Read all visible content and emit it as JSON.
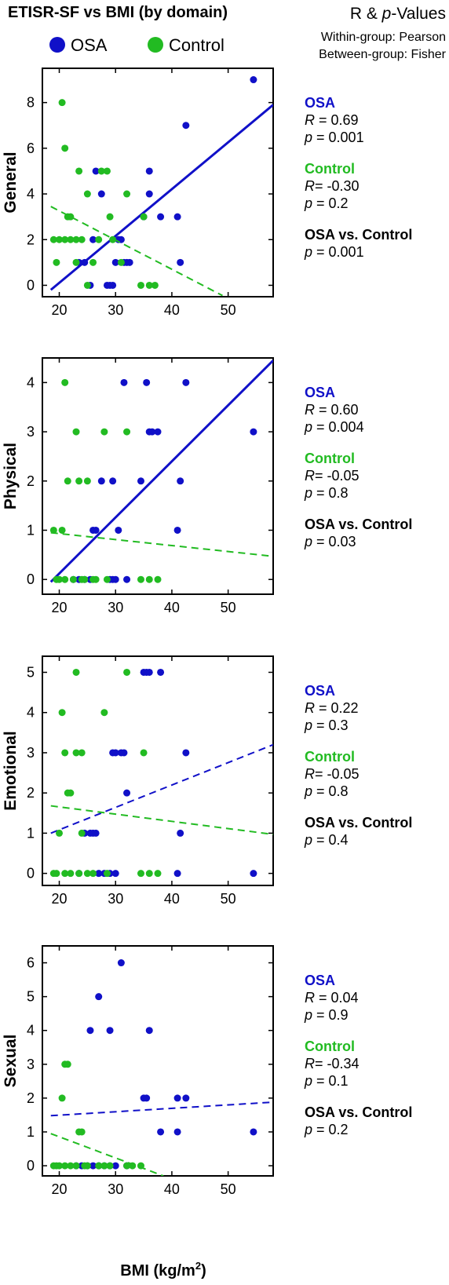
{
  "title": "ETISR-SF vs BMI (by domain)",
  "stats_header": {
    "title_prefix": "R & ",
    "title_p": "p",
    "title_suffix": "-Values",
    "within": "Within-group: Pearson",
    "between": "Between-group: Fisher"
  },
  "legend": [
    {
      "label": "OSA",
      "color": "#1010c8"
    },
    {
      "label": "Control",
      "color": "#22bb22"
    }
  ],
  "colors": {
    "osa": "#1010c8",
    "control": "#22bb22"
  },
  "xlabel": {
    "pre": "BMI (kg/m",
    "sup": "2",
    "post": ")"
  },
  "stat_text": {
    "r": "R",
    "p": "p",
    "between_title": "OSA vs. Control"
  },
  "chart_data": [
    {
      "type": "scatter",
      "ylabel": "General",
      "xlim": [
        17,
        58
      ],
      "ylim": [
        -0.5,
        9.5
      ],
      "xticks": [
        20,
        30,
        40,
        50
      ],
      "yticks": [
        0,
        2,
        4,
        6,
        8
      ],
      "series": [
        {
          "name": "OSA",
          "color": "#1010c8",
          "points": [
            [
              23.5,
              1
            ],
            [
              24.5,
              1
            ],
            [
              25.5,
              0
            ],
            [
              26,
              2
            ],
            [
              26.5,
              5
            ],
            [
              27.5,
              4
            ],
            [
              28.5,
              0
            ],
            [
              29,
              0
            ],
            [
              29.5,
              0
            ],
            [
              30,
              1
            ],
            [
              30.5,
              2
            ],
            [
              31,
              2
            ],
            [
              31.5,
              1
            ],
            [
              32,
              1
            ],
            [
              32.5,
              1
            ],
            [
              35,
              3
            ],
            [
              36,
              4
            ],
            [
              36,
              5
            ],
            [
              38,
              3
            ],
            [
              41,
              3
            ],
            [
              41.5,
              1
            ],
            [
              42.5,
              7
            ],
            [
              54.5,
              9
            ]
          ],
          "fit": {
            "x": [
              18.5,
              58
            ],
            "y": [
              -0.2,
              7.9
            ],
            "dashed": false
          }
        },
        {
          "name": "Control",
          "color": "#22bb22",
          "points": [
            [
              19,
              2
            ],
            [
              19.5,
              1
            ],
            [
              20,
              2
            ],
            [
              20.5,
              8
            ],
            [
              21,
              2
            ],
            [
              21,
              6
            ],
            [
              21.5,
              3
            ],
            [
              22,
              3
            ],
            [
              22,
              2
            ],
            [
              23,
              2
            ],
            [
              23,
              1
            ],
            [
              23.5,
              5
            ],
            [
              24,
              2
            ],
            [
              25,
              4
            ],
            [
              25,
              0
            ],
            [
              26,
              1
            ],
            [
              27,
              2
            ],
            [
              27.5,
              5
            ],
            [
              28.5,
              5
            ],
            [
              29,
              3
            ],
            [
              29.5,
              2
            ],
            [
              31,
              1
            ],
            [
              32,
              4
            ],
            [
              34.5,
              0
            ],
            [
              35,
              3
            ],
            [
              36,
              0
            ],
            [
              37,
              0
            ]
          ],
          "fit": {
            "x": [
              18.5,
              49
            ],
            "y": [
              3.45,
              -0.45
            ],
            "dashed": true
          }
        }
      ],
      "stats": {
        "osa": {
          "R": "0.69",
          "p": "0.001"
        },
        "control": {
          "R": "-0.30",
          "p": "0.2"
        },
        "between": {
          "p": "0.001"
        }
      }
    },
    {
      "type": "scatter",
      "ylabel": "Physical",
      "xlim": [
        17,
        58
      ],
      "ylim": [
        -0.3,
        4.5
      ],
      "xticks": [
        20,
        30,
        40,
        50
      ],
      "yticks": [
        0,
        1,
        2,
        3,
        4
      ],
      "series": [
        {
          "name": "OSA",
          "color": "#1010c8",
          "points": [
            [
              22.5,
              0
            ],
            [
              23.5,
              0
            ],
            [
              24.5,
              0
            ],
            [
              25.5,
              0
            ],
            [
              26,
              1
            ],
            [
              26.5,
              1
            ],
            [
              27.5,
              2
            ],
            [
              29,
              0
            ],
            [
              29.5,
              0
            ],
            [
              30,
              0
            ],
            [
              29.5,
              2
            ],
            [
              30.5,
              1
            ],
            [
              31.5,
              4
            ],
            [
              32,
              0
            ],
            [
              34.5,
              2
            ],
            [
              35.5,
              4
            ],
            [
              36,
              3
            ],
            [
              36.5,
              3
            ],
            [
              37.5,
              3
            ],
            [
              41,
              1
            ],
            [
              41.5,
              2
            ],
            [
              42.5,
              4
            ],
            [
              54.5,
              3
            ]
          ],
          "fit": {
            "x": [
              18.5,
              58
            ],
            "y": [
              -0.05,
              4.45
            ],
            "dashed": false
          }
        },
        {
          "name": "Control",
          "color": "#22bb22",
          "points": [
            [
              19,
              1
            ],
            [
              19.5,
              0
            ],
            [
              20,
              0
            ],
            [
              20.5,
              1
            ],
            [
              21,
              0
            ],
            [
              21,
              4
            ],
            [
              21.5,
              2
            ],
            [
              22.5,
              0
            ],
            [
              23,
              3
            ],
            [
              23.5,
              2
            ],
            [
              24,
              0
            ],
            [
              24.5,
              0
            ],
            [
              25,
              2
            ],
            [
              26,
              0
            ],
            [
              26.5,
              0
            ],
            [
              28,
              3
            ],
            [
              28.5,
              0
            ],
            [
              32,
              3
            ],
            [
              34.5,
              0
            ],
            [
              36,
              0
            ],
            [
              37.5,
              0
            ]
          ],
          "fit": {
            "x": [
              18.5,
              58
            ],
            "y": [
              0.95,
              0.47
            ],
            "dashed": true
          }
        }
      ],
      "stats": {
        "osa": {
          "R": "0.60",
          "p": "0.004"
        },
        "control": {
          "R": "-0.05",
          "p": "0.8"
        },
        "between": {
          "p": "0.03"
        }
      }
    },
    {
      "type": "scatter",
      "ylabel": "Emotional",
      "xlim": [
        17,
        58
      ],
      "ylim": [
        -0.3,
        5.4
      ],
      "xticks": [
        20,
        30,
        40,
        50
      ],
      "yticks": [
        0,
        1,
        2,
        3,
        4,
        5
      ],
      "series": [
        {
          "name": "OSA",
          "color": "#1010c8",
          "points": [
            [
              23.5,
              0
            ],
            [
              24.5,
              1
            ],
            [
              25.5,
              1
            ],
            [
              26,
              1
            ],
            [
              26.5,
              1
            ],
            [
              27,
              0
            ],
            [
              28,
              0
            ],
            [
              29,
              0
            ],
            [
              29.5,
              3
            ],
            [
              30,
              3
            ],
            [
              30,
              0
            ],
            [
              31,
              3
            ],
            [
              31.5,
              3
            ],
            [
              32,
              2
            ],
            [
              35,
              5
            ],
            [
              35.5,
              5
            ],
            [
              36,
              5
            ],
            [
              38,
              5
            ],
            [
              41,
              0
            ],
            [
              41.5,
              1
            ],
            [
              42.5,
              3
            ],
            [
              54.5,
              0
            ]
          ],
          "fit": {
            "x": [
              18.5,
              58
            ],
            "y": [
              1.0,
              3.2
            ],
            "dashed": true
          }
        },
        {
          "name": "Control",
          "color": "#22bb22",
          "points": [
            [
              19,
              0
            ],
            [
              19.5,
              0
            ],
            [
              20,
              1
            ],
            [
              20.5,
              4
            ],
            [
              21,
              3
            ],
            [
              21,
              0
            ],
            [
              21.5,
              2
            ],
            [
              22,
              2
            ],
            [
              22,
              0
            ],
            [
              23,
              5
            ],
            [
              23,
              3
            ],
            [
              23.5,
              0
            ],
            [
              24,
              3
            ],
            [
              24,
              1
            ],
            [
              25,
              0
            ],
            [
              26,
              0
            ],
            [
              28,
              4
            ],
            [
              28.5,
              0
            ],
            [
              32,
              5
            ],
            [
              34.5,
              0
            ],
            [
              35,
              3
            ],
            [
              36,
              0
            ],
            [
              37.5,
              0
            ]
          ],
          "fit": {
            "x": [
              18.5,
              58
            ],
            "y": [
              1.68,
              0.97
            ],
            "dashed": true
          }
        }
      ],
      "stats": {
        "osa": {
          "R": "0.22",
          "p": "0.3"
        },
        "control": {
          "R": "-0.05",
          "p": "0.8"
        },
        "between": {
          "p": "0.4"
        }
      }
    },
    {
      "type": "scatter",
      "ylabel": "Sexual",
      "xlim": [
        17,
        58
      ],
      "ylim": [
        -0.3,
        6.5
      ],
      "xticks": [
        20,
        30,
        40,
        50
      ],
      "yticks": [
        0,
        1,
        2,
        3,
        4,
        5,
        6
      ],
      "series": [
        {
          "name": "OSA",
          "color": "#1010c8",
          "points": [
            [
              23,
              0
            ],
            [
              24,
              0
            ],
            [
              25,
              0
            ],
            [
              25.5,
              4
            ],
            [
              26,
              0
            ],
            [
              27,
              0
            ],
            [
              27,
              5
            ],
            [
              28,
              0
            ],
            [
              29,
              0
            ],
            [
              29,
              4
            ],
            [
              30,
              0
            ],
            [
              31,
              6
            ],
            [
              32,
              0
            ],
            [
              35,
              2
            ],
            [
              35.5,
              2
            ],
            [
              36,
              4
            ],
            [
              38,
              1
            ],
            [
              41,
              2
            ],
            [
              41,
              1
            ],
            [
              42.5,
              2
            ],
            [
              54.5,
              1
            ]
          ],
          "fit": {
            "x": [
              18.5,
              58
            ],
            "y": [
              1.48,
              1.88
            ],
            "dashed": true
          }
        },
        {
          "name": "Control",
          "color": "#22bb22",
          "points": [
            [
              19,
              0
            ],
            [
              19.5,
              0
            ],
            [
              20,
              0
            ],
            [
              20.5,
              2
            ],
            [
              21,
              3
            ],
            [
              21,
              0
            ],
            [
              21.5,
              3
            ],
            [
              22,
              0
            ],
            [
              23,
              0
            ],
            [
              23.5,
              1
            ],
            [
              24,
              1
            ],
            [
              24.5,
              0
            ],
            [
              25,
              0
            ],
            [
              27,
              0
            ],
            [
              28,
              0
            ],
            [
              29,
              0
            ],
            [
              32,
              0
            ],
            [
              33,
              0
            ],
            [
              34.5,
              0
            ]
          ],
          "fit": {
            "x": [
              18.5,
              38.5
            ],
            "y": [
              0.95,
              -0.3
            ],
            "dashed": true
          }
        }
      ],
      "stats": {
        "osa": {
          "R": "0.04",
          "p": "0.9"
        },
        "control": {
          "R": "-0.34",
          "p": "0.1"
        },
        "between": {
          "p": "0.2"
        }
      }
    }
  ]
}
